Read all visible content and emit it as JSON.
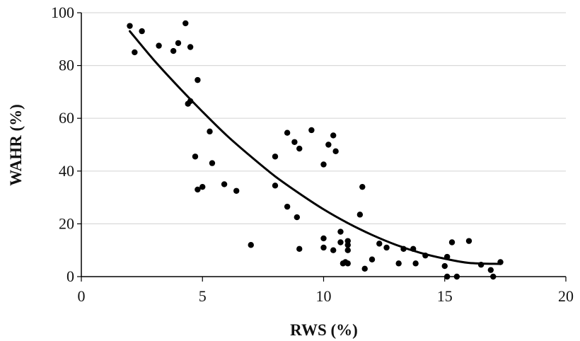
{
  "chart_data": {
    "type": "scatter",
    "title": "",
    "xlabel": "RWS (%)",
    "ylabel": "WAHR (%)",
    "xlim": [
      0,
      20
    ],
    "ylim": [
      0,
      100
    ],
    "xticks": [
      0,
      5,
      10,
      15,
      20
    ],
    "yticks": [
      0,
      20,
      40,
      60,
      80,
      100
    ],
    "grid": "horizontal",
    "legend": "none",
    "colors": {
      "points": "#000000",
      "trendline": "#000000",
      "grid": "#d9d9d9",
      "axis": "#000000"
    },
    "series": [
      {
        "points": [
          [
            2.0,
            95
          ],
          [
            2.2,
            85
          ],
          [
            2.5,
            93
          ],
          [
            3.2,
            87.5
          ],
          [
            3.8,
            85.5
          ],
          [
            4.0,
            88.5
          ],
          [
            4.3,
            96
          ],
          [
            4.5,
            87
          ],
          [
            4.4,
            65.5
          ],
          [
            4.5,
            66.5
          ],
          [
            4.8,
            74.5
          ],
          [
            4.7,
            45.5
          ],
          [
            4.8,
            33
          ],
          [
            5.0,
            34
          ],
          [
            5.3,
            55
          ],
          [
            5.4,
            43
          ],
          [
            5.9,
            35
          ],
          [
            6.4,
            32.5
          ],
          [
            7.0,
            12
          ],
          [
            8.0,
            45.5
          ],
          [
            8.0,
            34.5
          ],
          [
            8.5,
            54.5
          ],
          [
            8.8,
            51
          ],
          [
            9.0,
            48.5
          ],
          [
            8.5,
            26.5
          ],
          [
            8.9,
            22.5
          ],
          [
            9.0,
            10.5
          ],
          [
            9.5,
            55.5
          ],
          [
            10.0,
            42.5
          ],
          [
            10.2,
            50
          ],
          [
            10.4,
            53.5
          ],
          [
            10.5,
            47.5
          ],
          [
            10.0,
            14.5
          ],
          [
            10.0,
            11
          ],
          [
            10.4,
            10
          ],
          [
            10.7,
            17
          ],
          [
            10.7,
            13
          ],
          [
            10.8,
            5
          ],
          [
            10.9,
            5.5
          ],
          [
            11.0,
            13.5
          ],
          [
            11.0,
            12
          ],
          [
            11.0,
            10
          ],
          [
            11.0,
            5
          ],
          [
            11.5,
            23.5
          ],
          [
            11.6,
            34
          ],
          [
            11.7,
            3
          ],
          [
            12.0,
            6.5
          ],
          [
            12.3,
            12.5
          ],
          [
            12.6,
            11
          ],
          [
            13.1,
            5
          ],
          [
            13.3,
            10.5
          ],
          [
            13.7,
            10.5
          ],
          [
            13.8,
            5
          ],
          [
            14.2,
            8
          ],
          [
            15.0,
            4
          ],
          [
            15.1,
            7.5
          ],
          [
            15.1,
            0
          ],
          [
            15.3,
            13
          ],
          [
            15.5,
            0
          ],
          [
            16.0,
            13.5
          ],
          [
            16.5,
            4.5
          ],
          [
            16.9,
            2.5
          ],
          [
            17.0,
            0
          ],
          [
            17.3,
            5.5
          ]
        ]
      }
    ],
    "trendline": {
      "type": "polynomial-2",
      "x": [
        2,
        3,
        4,
        5,
        6,
        7,
        8,
        9,
        10,
        11,
        12,
        13,
        14,
        15,
        16,
        17.3
      ],
      "y": [
        93,
        82,
        72,
        62.5,
        53.5,
        45.5,
        38,
        31.5,
        25.5,
        20.3,
        15.8,
        12,
        9,
        6.8,
        5.2,
        4.8
      ]
    }
  }
}
